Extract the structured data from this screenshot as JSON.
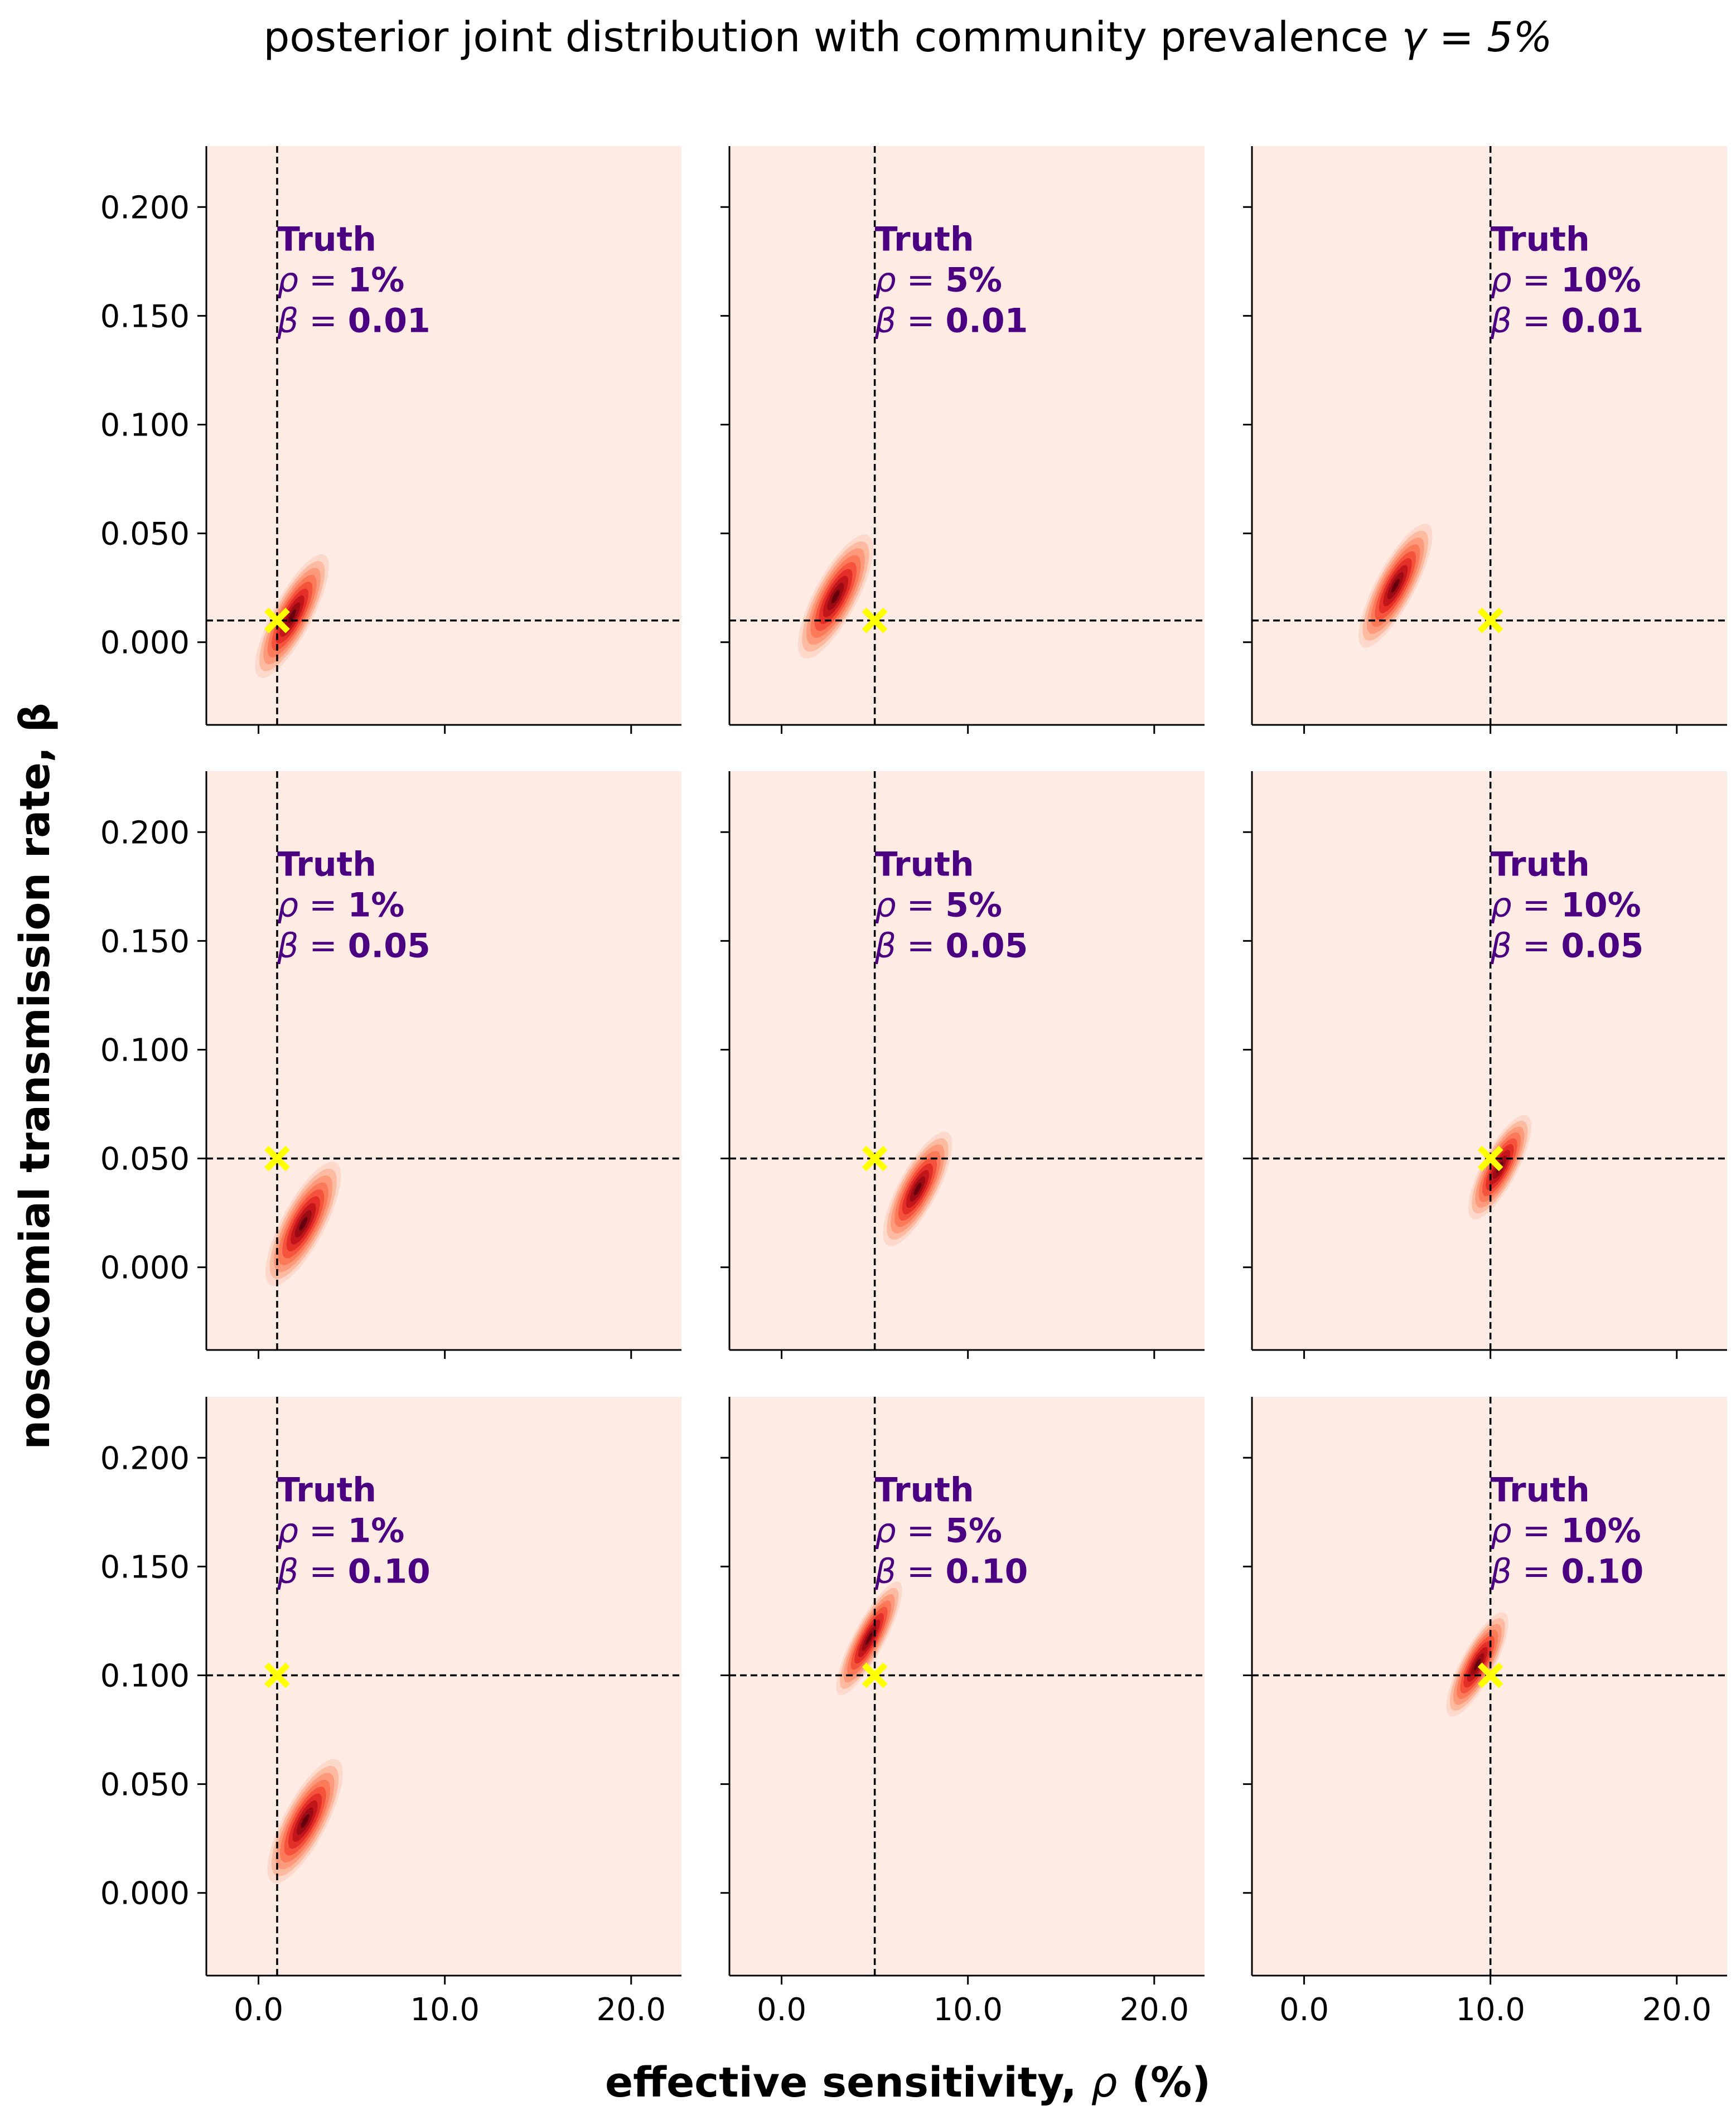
{
  "figure": {
    "title_prefix": "posterior joint distribution with community prevalence ",
    "title_math": "γ = 5%",
    "xlabel_prefix": "effective sensitivity, ",
    "xlabel_math": "ρ",
    "xlabel_suffix": " (%)",
    "ylabel": "nosocomial transmission rate, β"
  },
  "colors": {
    "background_fill": "#fdebe4",
    "density_levels": [
      "#fdd9cc",
      "#fcbba1",
      "#fc9a7b",
      "#fb7a5a",
      "#f5533b",
      "#e32f27",
      "#c2161b",
      "#9c0b13",
      "#67000d"
    ],
    "truth_marker": "#ffff00",
    "reference_line": "#000000",
    "annotation_text": "#4b0082"
  },
  "chart_data": {
    "type": "heatmap",
    "layout": "3x3 grid, shared axes",
    "x_range": [
      -2.8,
      22.7
    ],
    "y_range": [
      -0.038,
      0.228
    ],
    "x_ticks": [
      0,
      10,
      20
    ],
    "x_tick_labels": [
      "0.0",
      "10.0",
      "20.0"
    ],
    "y_ticks": [
      0,
      0.05,
      0.1,
      0.15,
      0.2
    ],
    "y_tick_labels": [
      "0.000",
      "0.050",
      "0.100",
      "0.150",
      "0.200"
    ],
    "annotation_header": "Truth",
    "panels": [
      {
        "truth_rho": 1,
        "truth_beta": 0.01,
        "rho_label": "1%",
        "beta_label": "0.01",
        "mode_rho": 1.8,
        "mode_beta": 0.012,
        "sd_rho": 1.0,
        "sd_beta": 0.0125
      },
      {
        "truth_rho": 5,
        "truth_beta": 0.01,
        "rho_label": "5%",
        "beta_label": "0.01",
        "mode_rho": 2.9,
        "mode_beta": 0.021,
        "sd_rho": 1.1,
        "sd_beta": 0.0125
      },
      {
        "truth_rho": 10,
        "truth_beta": 0.01,
        "rho_label": "10%",
        "beta_label": "0.01",
        "mode_rho": 4.9,
        "mode_beta": 0.026,
        "sd_rho": 1.0,
        "sd_beta": 0.0125
      },
      {
        "truth_rho": 1,
        "truth_beta": 0.05,
        "rho_label": "1%",
        "beta_label": "0.05",
        "mode_rho": 2.4,
        "mode_beta": 0.02,
        "sd_rho": 1.1,
        "sd_beta": 0.0125
      },
      {
        "truth_rho": 5,
        "truth_beta": 0.05,
        "rho_label": "5%",
        "beta_label": "0.05",
        "mode_rho": 7.3,
        "mode_beta": 0.036,
        "sd_rho": 1.0,
        "sd_beta": 0.0115
      },
      {
        "truth_rho": 10,
        "truth_beta": 0.05,
        "rho_label": "10%",
        "beta_label": "0.05",
        "mode_rho": 10.5,
        "mode_beta": 0.046,
        "sd_rho": 0.9,
        "sd_beta": 0.0105
      },
      {
        "truth_rho": 1,
        "truth_beta": 0.1,
        "rho_label": "1%",
        "beta_label": "0.10",
        "mode_rho": 2.5,
        "mode_beta": 0.033,
        "sd_rho": 1.1,
        "sd_beta": 0.0125
      },
      {
        "truth_rho": 5,
        "truth_beta": 0.1,
        "rho_label": "5%",
        "beta_label": "0.10",
        "mode_rho": 4.7,
        "mode_beta": 0.117,
        "sd_rho": 0.8,
        "sd_beta": 0.0115
      },
      {
        "truth_rho": 10,
        "truth_beta": 0.1,
        "rho_label": "10%",
        "beta_label": "0.10",
        "mode_rho": 9.3,
        "mode_beta": 0.105,
        "sd_rho": 0.85,
        "sd_beta": 0.0105
      }
    ]
  }
}
